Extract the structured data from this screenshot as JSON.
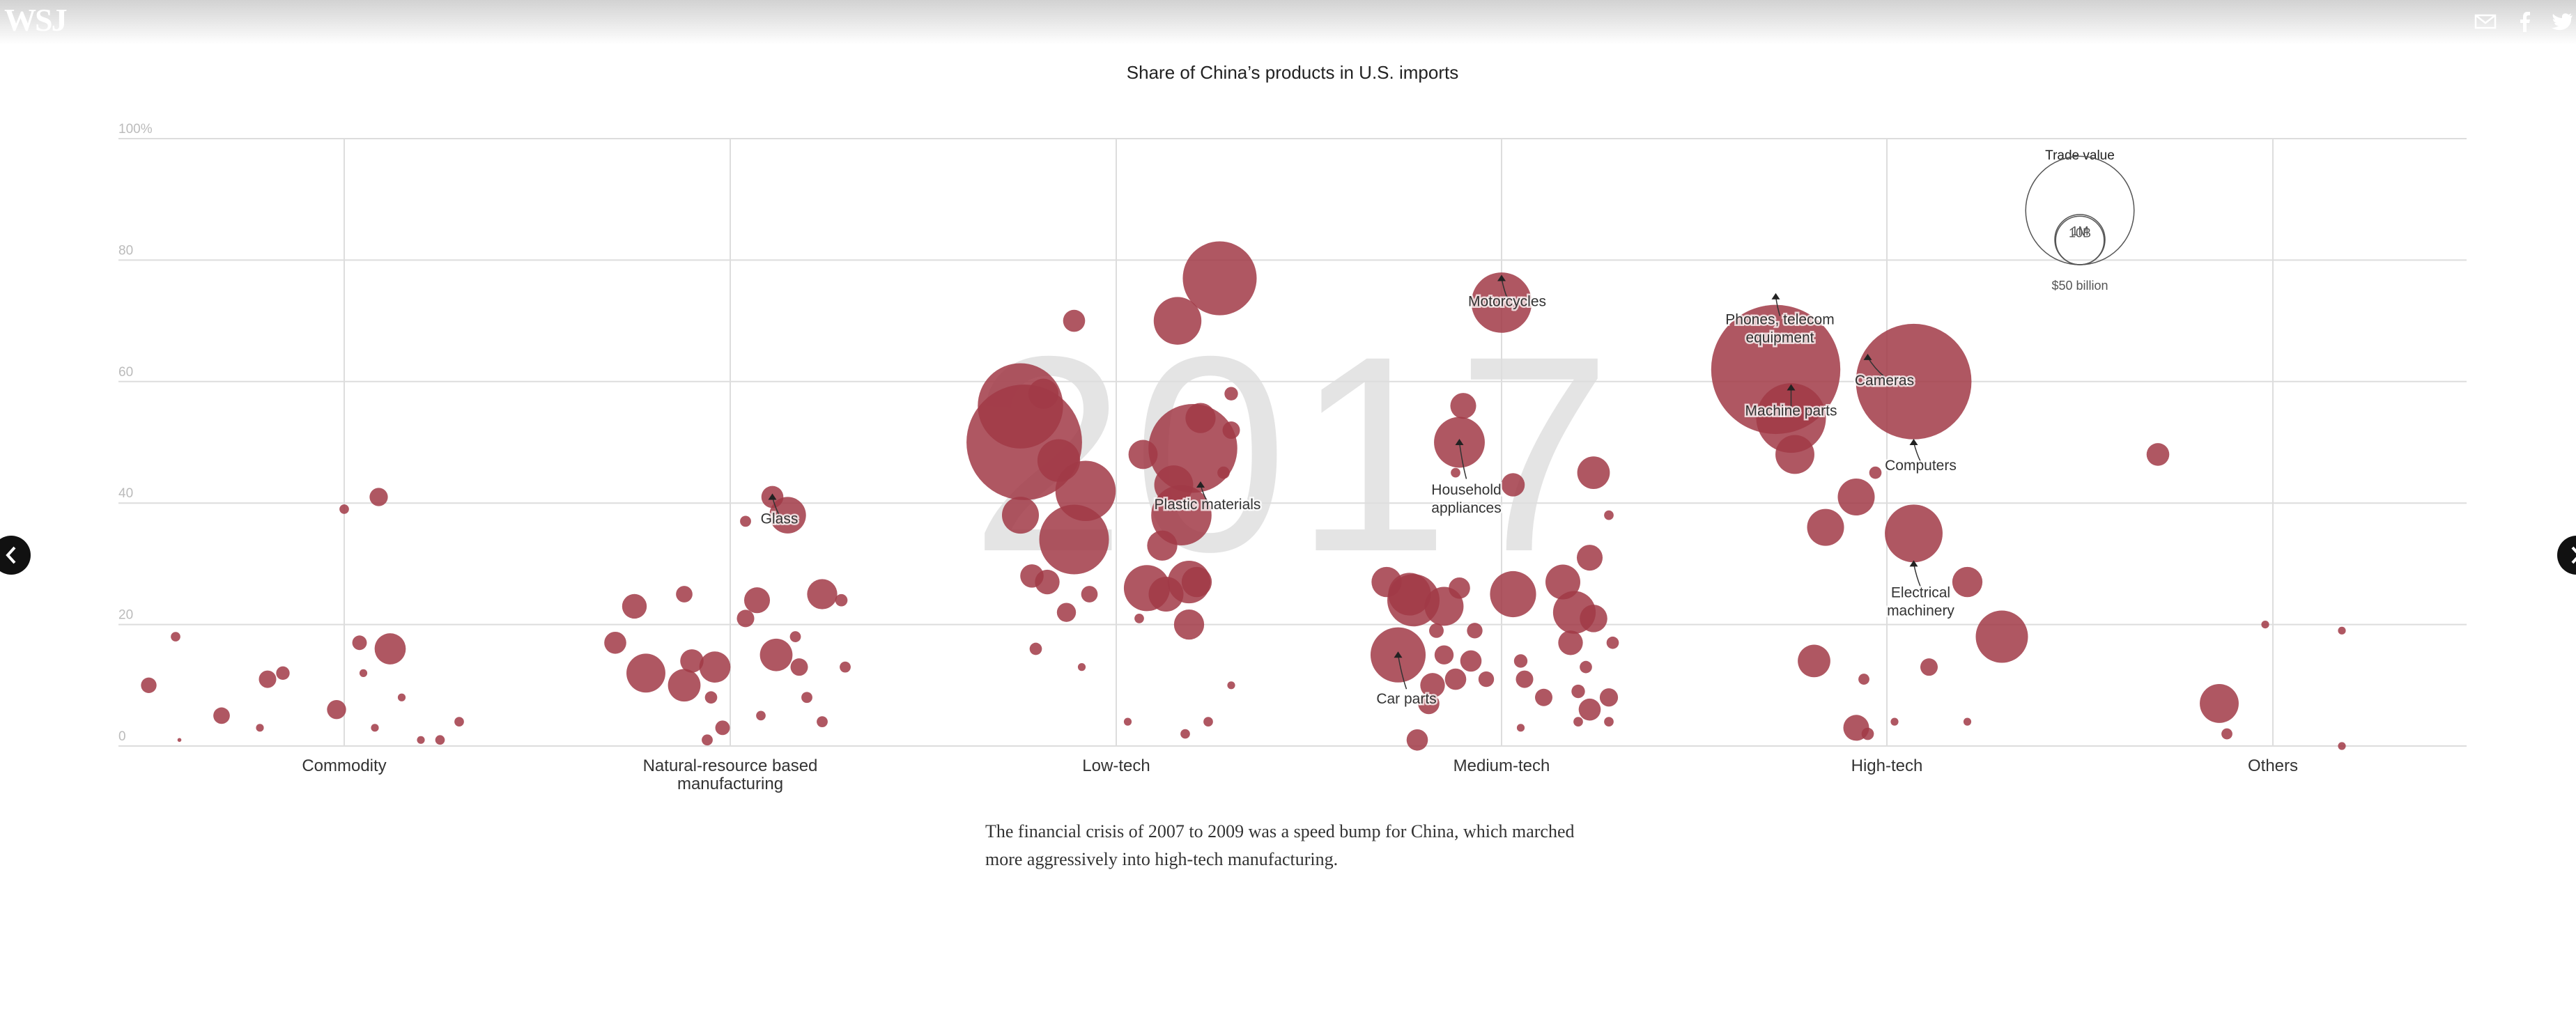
{
  "header": {
    "logo": "WSJ",
    "share_icons": [
      "mail-icon",
      "facebook-icon",
      "twitter-icon"
    ]
  },
  "nav": {
    "prev_icon": "chevron-left-icon",
    "next_icon": "chevron-right-icon"
  },
  "caption": "The financial crisis of 2007 to 2009 was a speed bump for China, which marched more aggressively into high-tech manufacturing.",
  "colors": {
    "bubble": "#a13a47",
    "grid": "#dddddd",
    "watermark": "#e4e4e4"
  },
  "chart_data": {
    "type": "scatter",
    "title": "Share of China’s products in U.S. imports",
    "year_label": "2017",
    "ylim": [
      0,
      100
    ],
    "y_ticks": [
      {
        "value": 0,
        "label": "0"
      },
      {
        "value": 20,
        "label": "20"
      },
      {
        "value": 40,
        "label": "40"
      },
      {
        "value": 60,
        "label": "60"
      },
      {
        "value": 80,
        "label": "80"
      },
      {
        "value": 100,
        "label": "100%"
      }
    ],
    "categories": [
      "Commodity",
      "Natural-resource based manufacturing",
      "Low-tech",
      "Medium-tech",
      "High-tech",
      "Others"
    ],
    "legend": {
      "title": "Trade value",
      "entries": [
        {
          "label": "1M",
          "value_billion": 1
        },
        {
          "label": "10B",
          "value_billion": 10
        },
        {
          "label": "$50 billion",
          "value_billion": 50
        }
      ]
    },
    "points": [
      {
        "cat": 0,
        "off": -0.51,
        "y": 10,
        "v": 0.8
      },
      {
        "cat": 0,
        "off": -0.44,
        "y": 18,
        "v": 0.3
      },
      {
        "cat": 0,
        "off": -0.43,
        "y": 1,
        "v": 0.05
      },
      {
        "cat": 0,
        "off": -0.32,
        "y": 5,
        "v": 0.9
      },
      {
        "cat": 0,
        "off": -0.2,
        "y": 11,
        "v": 1.0
      },
      {
        "cat": 0,
        "off": -0.16,
        "y": 12,
        "v": 0.6
      },
      {
        "cat": 0,
        "off": -0.02,
        "y": 6,
        "v": 1.2
      },
      {
        "cat": 0,
        "off": 0,
        "y": 39,
        "v": 0.3
      },
      {
        "cat": 0,
        "off": 0.04,
        "y": 17,
        "v": 0.7
      },
      {
        "cat": 0,
        "off": 0.05,
        "y": 12,
        "v": 0.2
      },
      {
        "cat": 0,
        "off": 0.09,
        "y": 41,
        "v": 1.1
      },
      {
        "cat": 0,
        "off": 0.12,
        "y": 16,
        "v": 3.2
      },
      {
        "cat": 0,
        "off": 0.08,
        "y": 3,
        "v": 0.2
      },
      {
        "cat": 0,
        "off": 0.25,
        "y": 1,
        "v": 0.3
      },
      {
        "cat": 0,
        "off": 0.3,
        "y": 4,
        "v": 0.3
      },
      {
        "cat": 0,
        "off": -0.22,
        "y": 3,
        "v": 0.2
      },
      {
        "cat": 0,
        "off": 0.15,
        "y": 8,
        "v": 0.2
      },
      {
        "cat": 0,
        "off": 0.2,
        "y": 1,
        "v": 0.2
      },
      {
        "cat": 1,
        "off": -0.3,
        "y": 17,
        "v": 1.6
      },
      {
        "cat": 1,
        "off": -0.25,
        "y": 23,
        "v": 2.0
      },
      {
        "cat": 1,
        "off": -0.22,
        "y": 12,
        "v": 5.0
      },
      {
        "cat": 1,
        "off": -0.12,
        "y": 25,
        "v": 0.9
      },
      {
        "cat": 1,
        "off": -0.12,
        "y": 10,
        "v": 3.5
      },
      {
        "cat": 1,
        "off": -0.1,
        "y": 14,
        "v": 1.8
      },
      {
        "cat": 1,
        "off": -0.04,
        "y": 13,
        "v": 3.2
      },
      {
        "cat": 1,
        "off": -0.02,
        "y": 3,
        "v": 0.7
      },
      {
        "cat": 1,
        "off": 0.04,
        "y": 37,
        "v": 0.4
      },
      {
        "cat": 1,
        "off": 0.04,
        "y": 21,
        "v": 1.0
      },
      {
        "cat": 1,
        "off": 0.07,
        "y": 24,
        "v": 2.2
      },
      {
        "cat": 1,
        "off": 0.11,
        "y": 41,
        "v": 1.6
      },
      {
        "cat": 1,
        "off": 0.12,
        "y": 15,
        "v": 3.5
      },
      {
        "cat": 1,
        "off": 0.15,
        "y": 38,
        "v": 4.4
      },
      {
        "cat": 1,
        "off": 0.18,
        "y": 13,
        "v": 1.0
      },
      {
        "cat": 1,
        "off": 0.2,
        "y": 8,
        "v": 0.4
      },
      {
        "cat": 1,
        "off": 0.24,
        "y": 25,
        "v": 3.0
      },
      {
        "cat": 1,
        "off": 0.29,
        "y": 24,
        "v": 0.5
      },
      {
        "cat": 1,
        "off": 0.3,
        "y": 13,
        "v": 0.4
      },
      {
        "cat": 1,
        "off": -0.05,
        "y": 8,
        "v": 0.5
      },
      {
        "cat": 1,
        "off": 0.24,
        "y": 4,
        "v": 0.4
      },
      {
        "cat": 1,
        "off": 0.08,
        "y": 5,
        "v": 0.3
      },
      {
        "cat": 1,
        "off": -0.06,
        "y": 1,
        "v": 0.4
      },
      {
        "cat": 1,
        "off": 0.17,
        "y": 18,
        "v": 0.4
      },
      {
        "cat": 2,
        "off": -0.25,
        "y": 56,
        "v": 24
      },
      {
        "cat": 2,
        "off": -0.24,
        "y": 50,
        "v": 44
      },
      {
        "cat": 2,
        "off": -0.19,
        "y": 58,
        "v": 3.0
      },
      {
        "cat": 2,
        "off": -0.15,
        "y": 47,
        "v": 6.0
      },
      {
        "cat": 2,
        "off": -0.11,
        "y": 70,
        "v": 1.6
      },
      {
        "cat": 2,
        "off": -0.08,
        "y": 42,
        "v": 12
      },
      {
        "cat": 2,
        "off": -0.11,
        "y": 34,
        "v": 16
      },
      {
        "cat": 2,
        "off": -0.25,
        "y": 38,
        "v": 4.5
      },
      {
        "cat": 2,
        "off": -0.22,
        "y": 28,
        "v": 1.8
      },
      {
        "cat": 2,
        "off": -0.18,
        "y": 27,
        "v": 2.0
      },
      {
        "cat": 2,
        "off": -0.07,
        "y": 25,
        "v": 0.9
      },
      {
        "cat": 2,
        "off": -0.13,
        "y": 22,
        "v": 1.2
      },
      {
        "cat": 2,
        "off": -0.21,
        "y": 16,
        "v": 0.5
      },
      {
        "cat": 2,
        "off": 0.07,
        "y": 48,
        "v": 2.8
      },
      {
        "cat": 2,
        "off": 0.16,
        "y": 70,
        "v": 7.5
      },
      {
        "cat": 2,
        "off": 0.27,
        "y": 77,
        "v": 18
      },
      {
        "cat": 2,
        "off": 0.3,
        "y": 58,
        "v": 0.6
      },
      {
        "cat": 2,
        "off": 0.22,
        "y": 54,
        "v": 3.0
      },
      {
        "cat": 2,
        "off": 0.3,
        "y": 52,
        "v": 1.0
      },
      {
        "cat": 2,
        "off": 0.2,
        "y": 49,
        "v": 26
      },
      {
        "cat": 2,
        "off": 0.15,
        "y": 43,
        "v": 5.0
      },
      {
        "cat": 2,
        "off": 0.28,
        "y": 45,
        "v": 0.5
      },
      {
        "cat": 2,
        "off": 0.17,
        "y": 38,
        "v": 12
      },
      {
        "cat": 2,
        "off": 0.12,
        "y": 33,
        "v": 3.0
      },
      {
        "cat": 2,
        "off": 0.08,
        "y": 26,
        "v": 7.0
      },
      {
        "cat": 2,
        "off": 0.13,
        "y": 25,
        "v": 4.0
      },
      {
        "cat": 2,
        "off": 0.19,
        "y": 27,
        "v": 6.0
      },
      {
        "cat": 2,
        "off": 0.21,
        "y": 27,
        "v": 3.0
      },
      {
        "cat": 2,
        "off": 0.19,
        "y": 20,
        "v": 3.0
      },
      {
        "cat": 2,
        "off": 0.06,
        "y": 21,
        "v": 0.3
      },
      {
        "cat": 2,
        "off": -0.09,
        "y": 13,
        "v": 0.2
      },
      {
        "cat": 2,
        "off": 0.03,
        "y": 4,
        "v": 0.2
      },
      {
        "cat": 2,
        "off": 0.24,
        "y": 4,
        "v": 0.3
      },
      {
        "cat": 2,
        "off": 0.18,
        "y": 2,
        "v": 0.3
      },
      {
        "cat": 2,
        "off": 0.3,
        "y": 10,
        "v": 0.2
      },
      {
        "cat": 3,
        "off": -0.3,
        "y": 27,
        "v": 3.0
      },
      {
        "cat": 3,
        "off": -0.24,
        "y": 25,
        "v": 6.0
      },
      {
        "cat": 3,
        "off": -0.23,
        "y": 24,
        "v": 9.0
      },
      {
        "cat": 3,
        "off": -0.27,
        "y": 15,
        "v": 10
      },
      {
        "cat": 3,
        "off": -0.17,
        "y": 19,
        "v": 0.7
      },
      {
        "cat": 3,
        "off": -0.15,
        "y": 23,
        "v": 5.0
      },
      {
        "cat": 3,
        "off": -0.18,
        "y": 10,
        "v": 2.0
      },
      {
        "cat": 3,
        "off": -0.19,
        "y": 7,
        "v": 1.5
      },
      {
        "cat": 3,
        "off": -0.22,
        "y": 1,
        "v": 1.5
      },
      {
        "cat": 3,
        "off": -0.15,
        "y": 15,
        "v": 1.2
      },
      {
        "cat": 3,
        "off": -0.11,
        "y": 26,
        "v": 1.5
      },
      {
        "cat": 3,
        "off": -0.07,
        "y": 19,
        "v": 0.8
      },
      {
        "cat": 3,
        "off": -0.12,
        "y": 11,
        "v": 1.5
      },
      {
        "cat": 3,
        "off": -0.08,
        "y": 14,
        "v": 1.5
      },
      {
        "cat": 3,
        "off": -0.04,
        "y": 11,
        "v": 0.8
      },
      {
        "cat": 3,
        "off": -0.11,
        "y": 50,
        "v": 8.5
      },
      {
        "cat": 3,
        "off": -0.1,
        "y": 56,
        "v": 2.2
      },
      {
        "cat": 3,
        "off": -0.12,
        "y": 45,
        "v": 0.3
      },
      {
        "cat": 3,
        "off": 0,
        "y": 73,
        "v": 12
      },
      {
        "cat": 3,
        "off": 0.03,
        "y": 43,
        "v": 1.8
      },
      {
        "cat": 3,
        "off": 0.03,
        "y": 25,
        "v": 7.0
      },
      {
        "cat": 3,
        "off": 0.05,
        "y": 14,
        "v": 0.6
      },
      {
        "cat": 3,
        "off": 0.06,
        "y": 11,
        "v": 1.0
      },
      {
        "cat": 3,
        "off": 0.11,
        "y": 8,
        "v": 1.0
      },
      {
        "cat": 3,
        "off": 0.16,
        "y": 27,
        "v": 4.0
      },
      {
        "cat": 3,
        "off": 0.18,
        "y": 17,
        "v": 2.0
      },
      {
        "cat": 3,
        "off": 0.19,
        "y": 22,
        "v": 6.0
      },
      {
        "cat": 3,
        "off": 0.24,
        "y": 21,
        "v": 2.5
      },
      {
        "cat": 3,
        "off": 0.22,
        "y": 13,
        "v": 0.5
      },
      {
        "cat": 3,
        "off": 0.23,
        "y": 31,
        "v": 2.2
      },
      {
        "cat": 3,
        "off": 0.24,
        "y": 45,
        "v": 3.5
      },
      {
        "cat": 3,
        "off": 0.28,
        "y": 38,
        "v": 0.3
      },
      {
        "cat": 3,
        "off": 0.28,
        "y": 8,
        "v": 1.1
      },
      {
        "cat": 3,
        "off": 0.23,
        "y": 6,
        "v": 1.6
      },
      {
        "cat": 3,
        "off": 0.28,
        "y": 4,
        "v": 0.3
      },
      {
        "cat": 3,
        "off": 0.2,
        "y": 9,
        "v": 0.6
      },
      {
        "cat": 3,
        "off": 0.2,
        "y": 4,
        "v": 0.3
      },
      {
        "cat": 3,
        "off": 0.05,
        "y": 3,
        "v": 0.2
      },
      {
        "cat": 3,
        "off": 0.29,
        "y": 17,
        "v": 0.5
      },
      {
        "cat": 4,
        "off": -0.29,
        "y": 62,
        "v": 55
      },
      {
        "cat": 4,
        "off": -0.25,
        "y": 54,
        "v": 16
      },
      {
        "cat": 4,
        "off": -0.24,
        "y": 48,
        "v": 5.0
      },
      {
        "cat": 4,
        "off": -0.16,
        "y": 36,
        "v": 4.5
      },
      {
        "cat": 4,
        "off": -0.19,
        "y": 14,
        "v": 3.5
      },
      {
        "cat": 4,
        "off": -0.08,
        "y": 41,
        "v": 4.5
      },
      {
        "cat": 4,
        "off": -0.03,
        "y": 45,
        "v": 0.5
      },
      {
        "cat": 4,
        "off": -0.06,
        "y": 11,
        "v": 0.4
      },
      {
        "cat": 4,
        "off": -0.08,
        "y": 3,
        "v": 2.2
      },
      {
        "cat": 4,
        "off": -0.05,
        "y": 2,
        "v": 0.5
      },
      {
        "cat": 4,
        "off": 0.07,
        "y": 60,
        "v": 44
      },
      {
        "cat": 4,
        "off": 0.07,
        "y": 35,
        "v": 11
      },
      {
        "cat": 4,
        "off": 0.11,
        "y": 13,
        "v": 1.0
      },
      {
        "cat": 4,
        "off": 0.02,
        "y": 4,
        "v": 0.2
      },
      {
        "cat": 4,
        "off": 0.21,
        "y": 27,
        "v": 3.0
      },
      {
        "cat": 4,
        "off": 0.3,
        "y": 18,
        "v": 9.0
      },
      {
        "cat": 4,
        "off": 0.21,
        "y": 4,
        "v": 0.2
      },
      {
        "cat": 5,
        "off": -0.3,
        "y": 48,
        "v": 1.7
      },
      {
        "cat": 5,
        "off": -0.14,
        "y": 7,
        "v": 5.0
      },
      {
        "cat": 5,
        "off": -0.12,
        "y": 2,
        "v": 0.4
      },
      {
        "cat": 5,
        "off": -0.02,
        "y": 20,
        "v": 0.2
      },
      {
        "cat": 5,
        "off": 0.18,
        "y": 19,
        "v": 0.2
      },
      {
        "cat": 5,
        "off": 0.18,
        "y": 0,
        "v": 0.2
      }
    ],
    "highlights": [
      {
        "label": [
          "Glass"
        ],
        "cat": 1,
        "off": 0.11,
        "y": 41,
        "v": 1.6,
        "ldx": 10,
        "ldy": 38
      },
      {
        "label": [
          "Plastic materials"
        ],
        "cat": 2,
        "off": 0.22,
        "y": 43,
        "v": 0.3,
        "ldx": 10,
        "ldy": 35
      },
      {
        "label": [
          "Motorcycles"
        ],
        "cat": 3,
        "off": 0,
        "y": 77,
        "v": 0.3,
        "ldx": 8,
        "ldy": 40
      },
      {
        "label": [
          "Household",
          "appliances"
        ],
        "cat": 3,
        "off": -0.11,
        "y": 50,
        "v": 8.5,
        "ldx": 10,
        "ldy": 75
      },
      {
        "label": [
          "Car parts"
        ],
        "cat": 3,
        "off": -0.27,
        "y": 15,
        "v": 10,
        "ldx": 12,
        "ldy": 70
      },
      {
        "label": [
          "Phones, telecom",
          "equipment"
        ],
        "cat": 4,
        "off": -0.29,
        "y": 74,
        "v": 0.3,
        "ldx": 6,
        "ldy": 40
      },
      {
        "label": [
          "Machine parts"
        ],
        "cat": 4,
        "off": -0.25,
        "y": 59,
        "v": 0.3,
        "ldx": 0,
        "ldy": 40
      },
      {
        "label": [
          "Cameras"
        ],
        "cat": 4,
        "off": -0.05,
        "y": 64,
        "v": 0.3,
        "ldx": 24,
        "ldy": 40
      },
      {
        "label": [
          "Computers"
        ],
        "cat": 4,
        "off": 0.07,
        "y": 50,
        "v": 0.3,
        "ldx": 10,
        "ldy": 40
      },
      {
        "label": [
          "Electrical",
          "machinery"
        ],
        "cat": 4,
        "off": 0.07,
        "y": 30,
        "v": 0.3,
        "ldx": 10,
        "ldy": 48
      }
    ]
  }
}
